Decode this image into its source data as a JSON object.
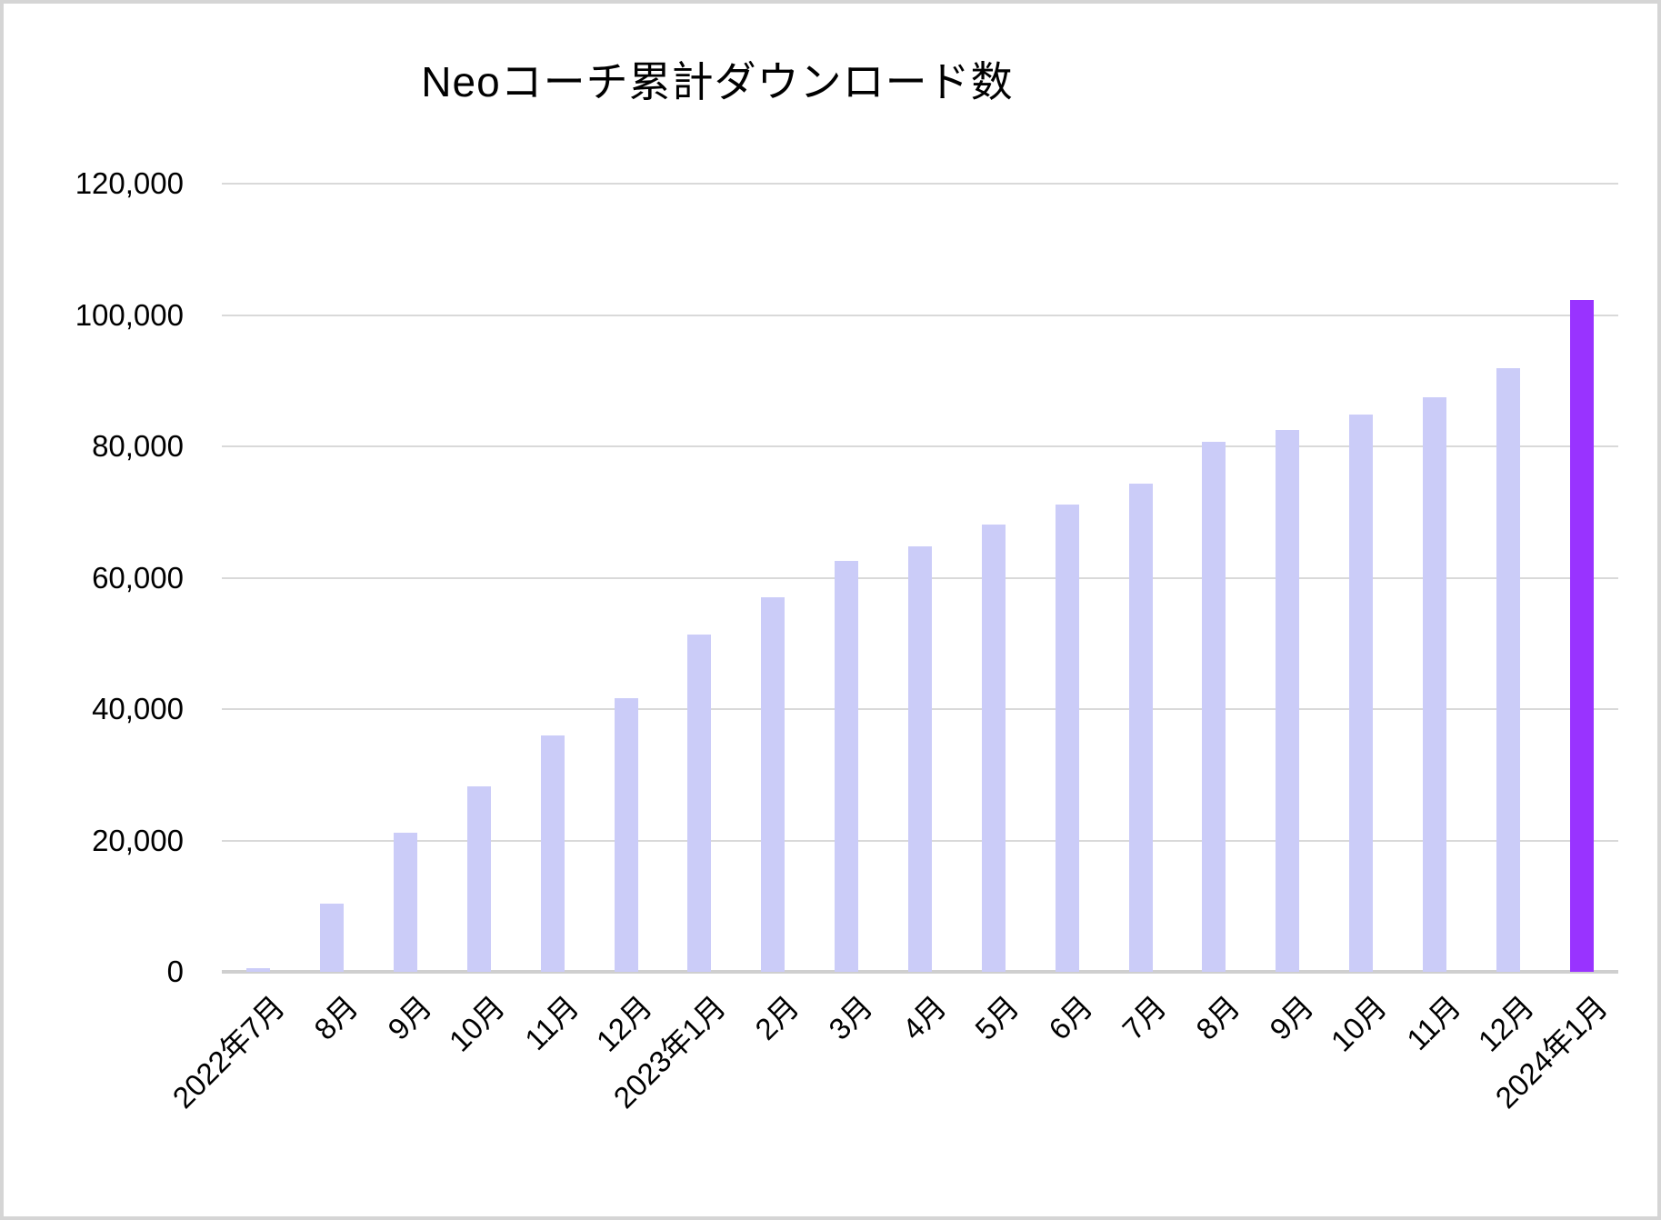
{
  "chart_data": {
    "type": "bar",
    "title": "Neoコーチ累計ダウンロード数",
    "categories": [
      "2022年7月",
      "8月",
      "9月",
      "10月",
      "11月",
      "12月",
      "2023年1月",
      "2月",
      "3月",
      "4月",
      "5月",
      "6月",
      "7月",
      "8月",
      "9月",
      "10月",
      "11月",
      "12月",
      "2024年1月"
    ],
    "values": [
      600,
      10400,
      21200,
      28300,
      36000,
      41700,
      51300,
      57000,
      62600,
      64800,
      68100,
      71200,
      74300,
      80700,
      82500,
      84800,
      87500,
      91900,
      102300
    ],
    "highlight_index": 18,
    "xlabel": "",
    "ylabel": "",
    "ylim": [
      0,
      120000
    ],
    "ytick_step": 20000,
    "ytick_labels": [
      "0",
      "20,000",
      "40,000",
      "60,000",
      "80,000",
      "100,000",
      "120,000"
    ],
    "grid": true,
    "legend": "none",
    "colors": {
      "bar": "#cbccf8",
      "highlight": "#9933ff",
      "gridline": "#d9d9d9",
      "axis_line": "#cfcfcf",
      "text": "#000000",
      "background": "#ffffff",
      "frame_border": "#d5d5d5"
    }
  }
}
